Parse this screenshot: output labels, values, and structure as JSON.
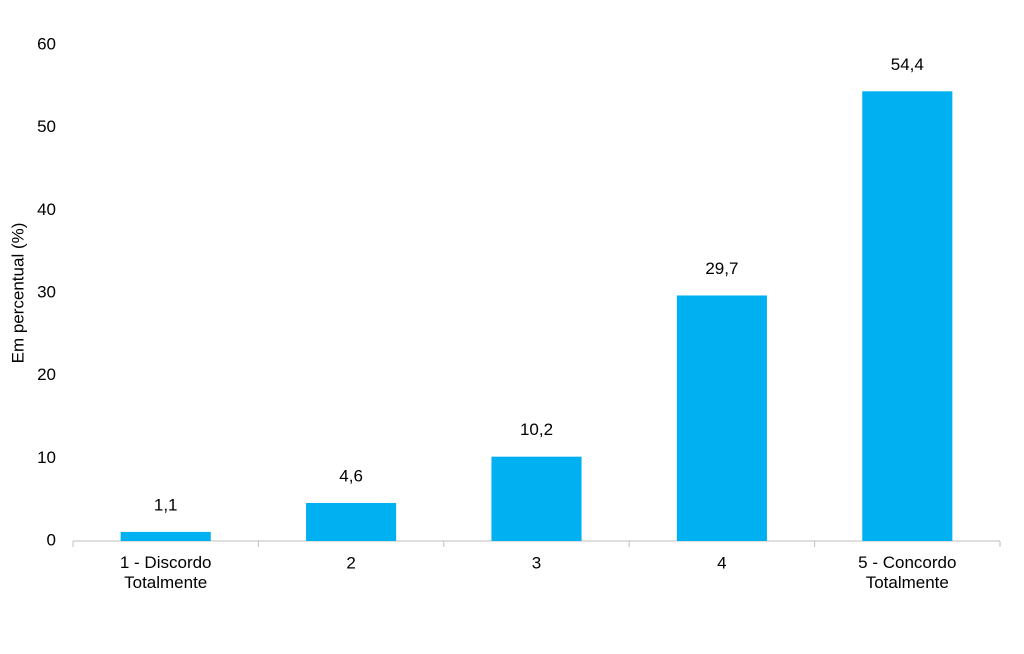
{
  "chart_data": {
    "type": "bar",
    "y_label": "Em percentual (%)",
    "categories": [
      "1 - Discordo\nTotalmente",
      "2",
      "3",
      "4",
      "5 - Concordo\nTotalmente"
    ],
    "values": [
      1.1,
      4.6,
      10.2,
      29.7,
      54.4
    ],
    "value_labels": [
      "1,1",
      "4,6",
      "10,2",
      "29,7",
      "54,4"
    ],
    "color": "#00b0f0",
    "ylim": [
      0,
      60
    ],
    "yticks": [
      0,
      10,
      20,
      30,
      40,
      50,
      60
    ],
    "grid": false
  }
}
